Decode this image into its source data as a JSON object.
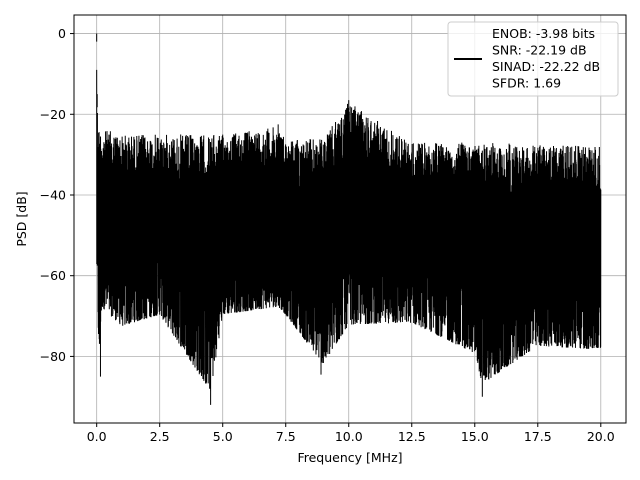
{
  "chart_data": {
    "type": "line",
    "title": "",
    "xlabel": "Frequency [MHz]",
    "ylabel": "PSD [dB]",
    "xlim": [
      -0.9,
      21.0
    ],
    "ylim": [
      -96.5,
      4.6
    ],
    "xticks": [
      0.0,
      2.5,
      5.0,
      7.5,
      10.0,
      12.5,
      15.0,
      17.5,
      20.0
    ],
    "xtick_labels": [
      "0.0",
      "2.5",
      "5.0",
      "7.5",
      "10.0",
      "12.5",
      "15.0",
      "17.5",
      "20.0"
    ],
    "yticks": [
      0,
      -20,
      -40,
      -60,
      -80
    ],
    "ytick_labels": [
      "0",
      "−20",
      "−40",
      "−60",
      "−80"
    ],
    "grid": true,
    "legend_position": "top-right",
    "series": [
      {
        "name": "",
        "color": "#000000",
        "description_points": {
          "x": [
            0.0,
            0.01,
            0.05,
            0.1,
            0.2,
            0.5,
            1.0,
            2.5,
            4.52,
            5.0,
            7.2,
            7.5,
            9.0,
            10.0,
            12.5,
            15.0,
            15.3,
            17.5,
            20.0
          ],
          "upper": [
            0,
            -15,
            -20,
            -23,
            -24,
            -24,
            -25,
            -25,
            -25,
            -25,
            -23,
            -26,
            -26,
            -17,
            -27,
            -27,
            -27,
            -27.5,
            -28
          ],
          "lower": [
            -55,
            -70,
            -74,
            -85,
            -70,
            -72,
            -75,
            -72,
            -92,
            -72,
            -70,
            -72,
            -85,
            -75,
            -74,
            -82,
            -90,
            -80,
            -81
          ]
        }
      }
    ],
    "legend": {
      "lines": [
        "ENOB: -3.98 bits",
        "SNR: -22.19 dB",
        "SINAD: -22.22 dB",
        "SFDR: 1.69"
      ]
    }
  }
}
